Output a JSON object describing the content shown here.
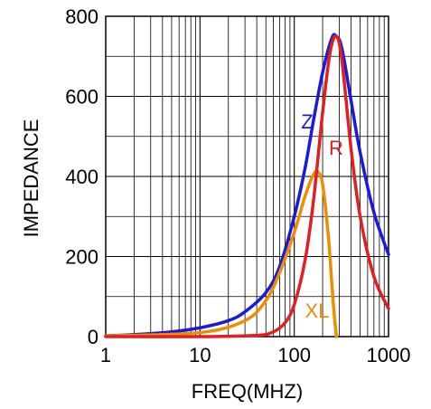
{
  "chart_data": {
    "type": "line",
    "xlabel": "FREQ(MHZ)",
    "ylabel": "IMPEDANCE",
    "x_scale": "log",
    "xlim": [
      1,
      1000
    ],
    "ylim": [
      0,
      800
    ],
    "x_ticks": [
      "1",
      "10",
      "100",
      "1000"
    ],
    "y_ticks": [
      "0",
      "200",
      "400",
      "600",
      "800"
    ],
    "grid": true,
    "series": [
      {
        "name": "Z",
        "color": "#1a1adc",
        "x": [
          1,
          2,
          5,
          10,
          20,
          30,
          50,
          70,
          100,
          130,
          160,
          200,
          250,
          280,
          320,
          400,
          500,
          700,
          1000
        ],
        "y": [
          2,
          5,
          12,
          22,
          40,
          62,
          110,
          175,
          300,
          420,
          540,
          660,
          745,
          750,
          720,
          590,
          460,
          310,
          205
        ]
      },
      {
        "name": "R",
        "color": "#e02020",
        "x": [
          1,
          10,
          40,
          60,
          80,
          100,
          130,
          160,
          200,
          240,
          280,
          320,
          400,
          500,
          700,
          1000
        ],
        "y": [
          0,
          0,
          3,
          12,
          35,
          80,
          190,
          340,
          560,
          710,
          750,
          690,
          470,
          300,
          150,
          70
        ]
      },
      {
        "name": "XL",
        "color": "#f08c00",
        "x": [
          1,
          10,
          30,
          50,
          70,
          100,
          130,
          160,
          180,
          200,
          230,
          260,
          280
        ],
        "y": [
          2,
          10,
          40,
          90,
          160,
          260,
          350,
          405,
          410,
          380,
          250,
          80,
          0
        ]
      }
    ]
  }
}
